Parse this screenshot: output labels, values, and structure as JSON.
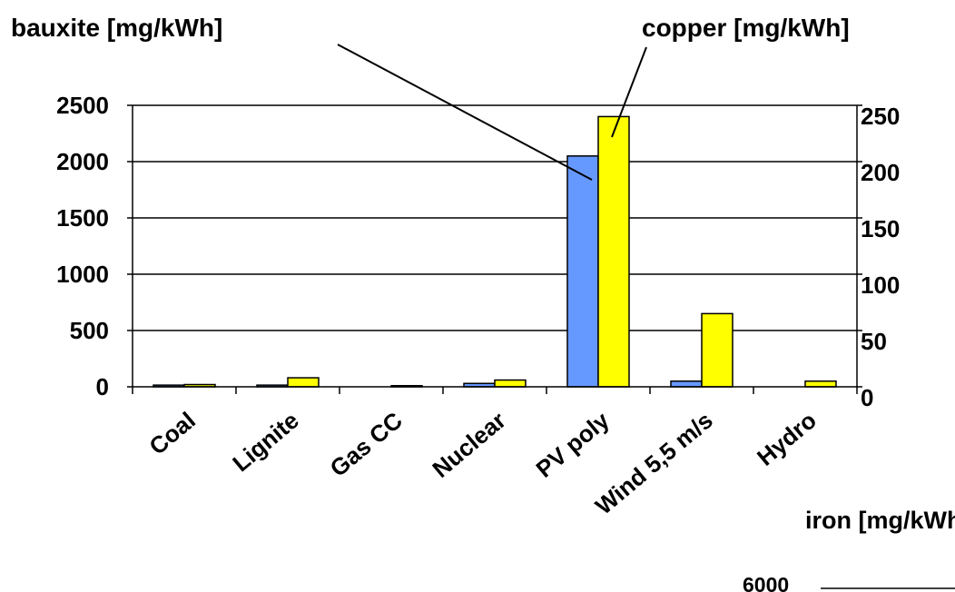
{
  "chart_data": {
    "type": "bar",
    "categories": [
      "Coal",
      "Lignite",
      "Gas CC",
      "Nuclear",
      "PV poly",
      "Wind 5,5 m/s",
      "Hydro"
    ],
    "series": [
      {
        "name": "bauxite [mg/kWh]",
        "axis": "left",
        "color": "#6699ff",
        "values": [
          15,
          15,
          0,
          30,
          2050,
          50,
          0
        ]
      },
      {
        "name": "copper [mg/kWh]",
        "axis": "right",
        "color": "#ffff00",
        "values": [
          2,
          8,
          1,
          6,
          240,
          65,
          5
        ]
      }
    ],
    "left_axis": {
      "ylim": [
        0,
        2500
      ],
      "ticks": [
        "0",
        "500",
        "1000",
        "1500",
        "2000",
        "2500"
      ]
    },
    "right_axis": {
      "ylim": [
        0,
        250
      ],
      "ticks": [
        "0",
        "50",
        "100",
        "150",
        "200",
        "250"
      ]
    },
    "grid": true,
    "annotations": {
      "bauxite": "bauxite [mg/kWh]",
      "copper": "copper [mg/kWh]"
    },
    "second_chart_partial": {
      "title": "iron  [mg/kWh]",
      "first_tick": "6000"
    }
  }
}
